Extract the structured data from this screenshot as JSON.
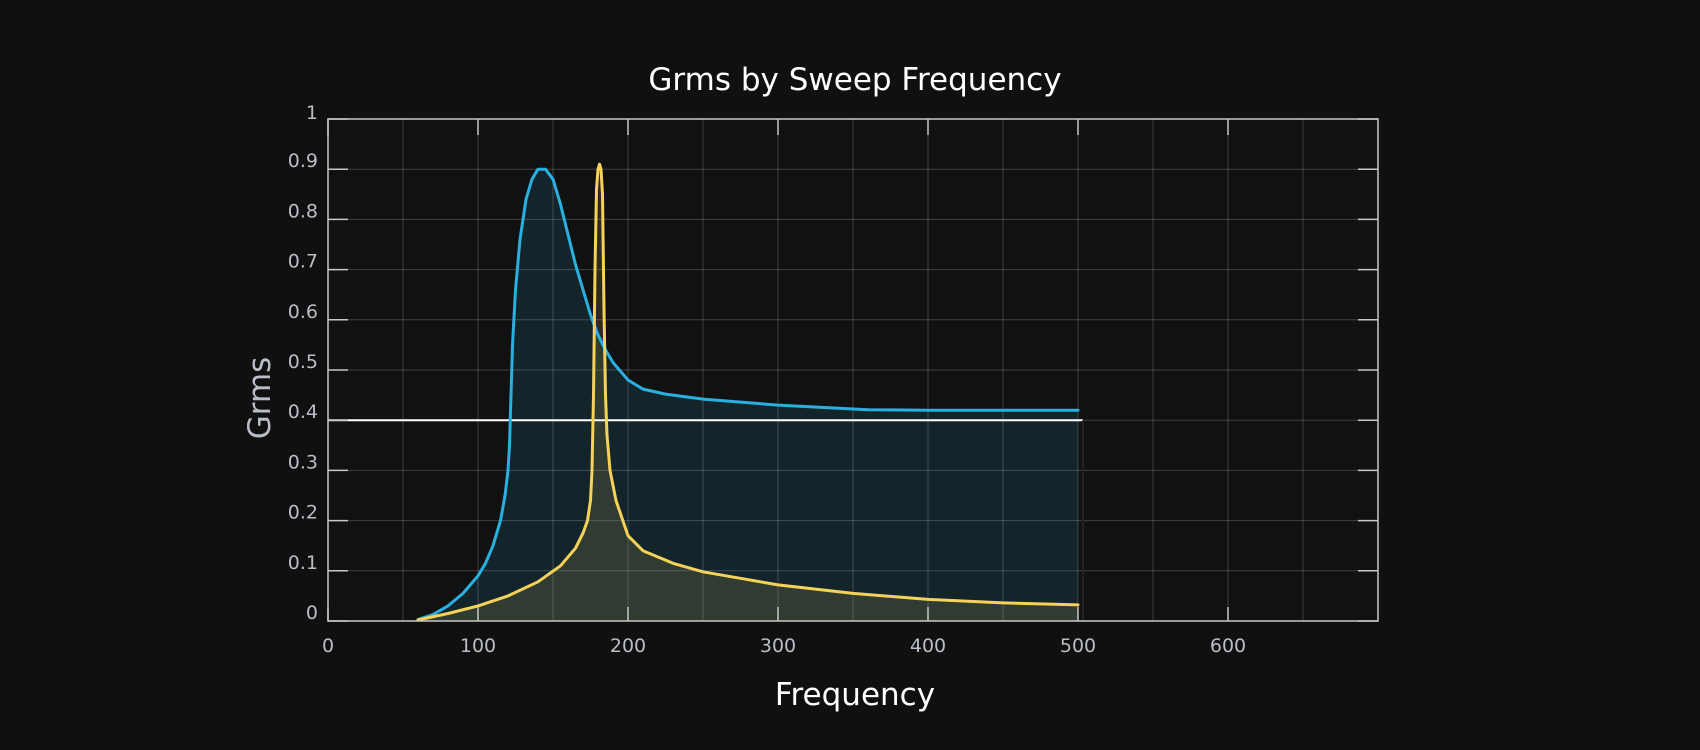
{
  "chart_data": {
    "type": "line",
    "title": "Grms by Sweep Frequency",
    "xlabel": "Frequency",
    "ylabel": "Grms",
    "xlim": [
      0,
      700
    ],
    "ylim": [
      0,
      1
    ],
    "x_ticks": [
      0,
      100,
      200,
      300,
      400,
      500,
      600
    ],
    "y_ticks": [
      0,
      0.1,
      0.2,
      0.3,
      0.4,
      0.5,
      0.6,
      0.7,
      0.8,
      0.9,
      1
    ],
    "grid": true,
    "reference_line": {
      "y": 0.4,
      "x_range": [
        0,
        500
      ],
      "color": "#ffffff"
    },
    "series": [
      {
        "color": "#29b0e0",
        "fill": true,
        "points": [
          [
            60,
            0.003
          ],
          [
            70,
            0.013
          ],
          [
            80,
            0.03
          ],
          [
            90,
            0.055
          ],
          [
            100,
            0.09
          ],
          [
            105,
            0.115
          ],
          [
            110,
            0.15
          ],
          [
            115,
            0.2
          ],
          [
            118,
            0.25
          ],
          [
            120,
            0.3
          ],
          [
            121,
            0.35
          ],
          [
            122,
            0.45
          ],
          [
            123,
            0.55
          ],
          [
            125,
            0.66
          ],
          [
            128,
            0.76
          ],
          [
            132,
            0.84
          ],
          [
            136,
            0.88
          ],
          [
            140,
            0.9
          ],
          [
            145,
            0.9
          ],
          [
            150,
            0.88
          ],
          [
            155,
            0.83
          ],
          [
            160,
            0.77
          ],
          [
            165,
            0.71
          ],
          [
            170,
            0.66
          ],
          [
            175,
            0.61
          ],
          [
            180,
            0.57
          ],
          [
            185,
            0.54
          ],
          [
            190,
            0.515
          ],
          [
            200,
            0.48
          ],
          [
            210,
            0.462
          ],
          [
            225,
            0.452
          ],
          [
            250,
            0.442
          ],
          [
            300,
            0.43
          ],
          [
            360,
            0.421
          ],
          [
            400,
            0.42
          ],
          [
            500,
            0.42
          ]
        ]
      },
      {
        "color": "#f5d25a",
        "fill": true,
        "points": [
          [
            60,
            0.002
          ],
          [
            80,
            0.015
          ],
          [
            100,
            0.03
          ],
          [
            120,
            0.05
          ],
          [
            140,
            0.078
          ],
          [
            155,
            0.11
          ],
          [
            165,
            0.145
          ],
          [
            170,
            0.175
          ],
          [
            173,
            0.2
          ],
          [
            175,
            0.24
          ],
          [
            176,
            0.3
          ],
          [
            177,
            0.45
          ],
          [
            178,
            0.7
          ],
          [
            179,
            0.86
          ],
          [
            180,
            0.9
          ],
          [
            181,
            0.91
          ],
          [
            182,
            0.9
          ],
          [
            183,
            0.85
          ],
          [
            184,
            0.62
          ],
          [
            185,
            0.45
          ],
          [
            186,
            0.37
          ],
          [
            188,
            0.3
          ],
          [
            192,
            0.24
          ],
          [
            200,
            0.17
          ],
          [
            210,
            0.14
          ],
          [
            230,
            0.115
          ],
          [
            250,
            0.098
          ],
          [
            300,
            0.072
          ],
          [
            350,
            0.055
          ],
          [
            400,
            0.043
          ],
          [
            450,
            0.036
          ],
          [
            500,
            0.032
          ]
        ]
      }
    ]
  }
}
